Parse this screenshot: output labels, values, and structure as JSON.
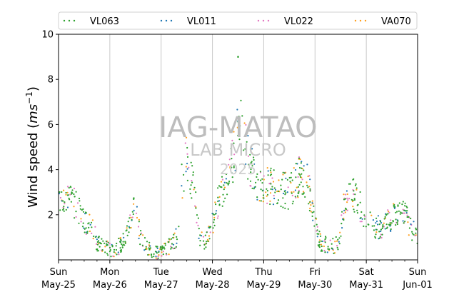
{
  "chart_data": {
    "type": "scatter",
    "title": "",
    "xlabel": "",
    "ylabel_main": "Wind speed (",
    "ylabel_unit_base": "ms",
    "ylabel_unit_exp": "−1",
    "ylabel_close": ")",
    "xlim": [
      "2025-05-25",
      "2025-06-01"
    ],
    "ylim": [
      0,
      10
    ],
    "yticks": [
      "2",
      "4",
      "6",
      "8",
      "10"
    ],
    "ytick_values": [
      2,
      4,
      6,
      8,
      10
    ],
    "xticks": [
      {
        "day": "Sun",
        "date": "May-25"
      },
      {
        "day": "Mon",
        "date": "May-26"
      },
      {
        "day": "Tue",
        "date": "May-27"
      },
      {
        "day": "Wed",
        "date": "May-28"
      },
      {
        "day": "Thu",
        "date": "May-29"
      },
      {
        "day": "Fri",
        "date": "May-30"
      },
      {
        "day": "Sat",
        "date": "May-31"
      },
      {
        "day": "Sun",
        "date": "Jun-01"
      }
    ],
    "grid": "vertical",
    "legend_position": "top",
    "series": [
      {
        "name": "VL063",
        "color": "#2ca02c"
      },
      {
        "name": "VL011",
        "color": "#1f77b4"
      },
      {
        "name": "VL022",
        "color": "#e377c2"
      },
      {
        "name": "VA070",
        "color": "#ff9f1c"
      }
    ],
    "profile_days": [
      0,
      0.15,
      0.3,
      0.45,
      0.55,
      0.65,
      0.75,
      0.9,
      1.0,
      1.1,
      1.25,
      1.4,
      1.5,
      1.6,
      1.75,
      1.85,
      2.0,
      2.1,
      2.2,
      2.3,
      2.4,
      2.5,
      2.65,
      2.75,
      2.85,
      2.95,
      3.1,
      3.25,
      3.4,
      3.55,
      3.65,
      3.8,
      3.95,
      4.1,
      4.3,
      4.5,
      4.7,
      4.85,
      5.0,
      5.1,
      5.3,
      5.45,
      5.55,
      5.7,
      5.85,
      6.0,
      6.15,
      6.3,
      6.5,
      6.7,
      6.85,
      7.0
    ],
    "profile_speed": [
      3.0,
      2.8,
      2.5,
      2.0,
      1.6,
      1.5,
      0.8,
      0.6,
      0.5,
      0.4,
      0.8,
      1.8,
      2.3,
      1.0,
      0.5,
      0.3,
      0.3,
      0.5,
      0.7,
      1.0,
      3.5,
      4.5,
      3.0,
      1.0,
      0.7,
      1.2,
      2.5,
      3.5,
      4.5,
      6.2,
      5.0,
      3.8,
      3.2,
      3.3,
      3.2,
      3.0,
      3.8,
      3.6,
      1.5,
      0.8,
      0.6,
      0.7,
      2.2,
      3.0,
      2.5,
      1.8,
      1.5,
      1.4,
      1.9,
      2.3,
      1.5,
      1.0
    ],
    "peak_point": {
      "x_day": 3.5,
      "y": 9.0
    }
  },
  "watermark": {
    "line1": "IAG-MATAO",
    "line2": "LAB MICRO",
    "line3": "2025"
  }
}
